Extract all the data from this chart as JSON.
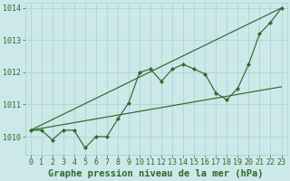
{
  "title": "Graphe pression niveau de la mer (hPa)",
  "x_values": [
    0,
    1,
    2,
    3,
    4,
    5,
    6,
    7,
    8,
    9,
    10,
    11,
    12,
    13,
    14,
    15,
    16,
    17,
    18,
    19,
    20,
    21,
    22,
    23
  ],
  "pressure_main": [
    1010.2,
    1010.2,
    1009.9,
    1010.2,
    1010.2,
    1009.65,
    1010.0,
    1010.0,
    1010.55,
    1011.05,
    1012.0,
    1012.1,
    1011.72,
    1012.1,
    1012.25,
    1012.1,
    1011.95,
    1011.35,
    1011.15,
    1011.5,
    1012.25,
    1013.2,
    1013.55,
    1014.0
  ],
  "upper_line_x": [
    0,
    23
  ],
  "upper_line_y": [
    1010.2,
    1014.0
  ],
  "lower_line_x": [
    0,
    23
  ],
  "lower_line_y": [
    1010.2,
    1011.55
  ],
  "line_color": "#2d6a2d",
  "bg_color": "#cce8e8",
  "grid_color": "#aacfcf",
  "ylim_min": 1009.45,
  "ylim_max": 1014.15,
  "yticks": [
    1010,
    1011,
    1012,
    1013,
    1014
  ],
  "xlim_min": -0.5,
  "xlim_max": 23.5,
  "title_fontsize": 7.5,
  "tick_fontsize": 6.0
}
